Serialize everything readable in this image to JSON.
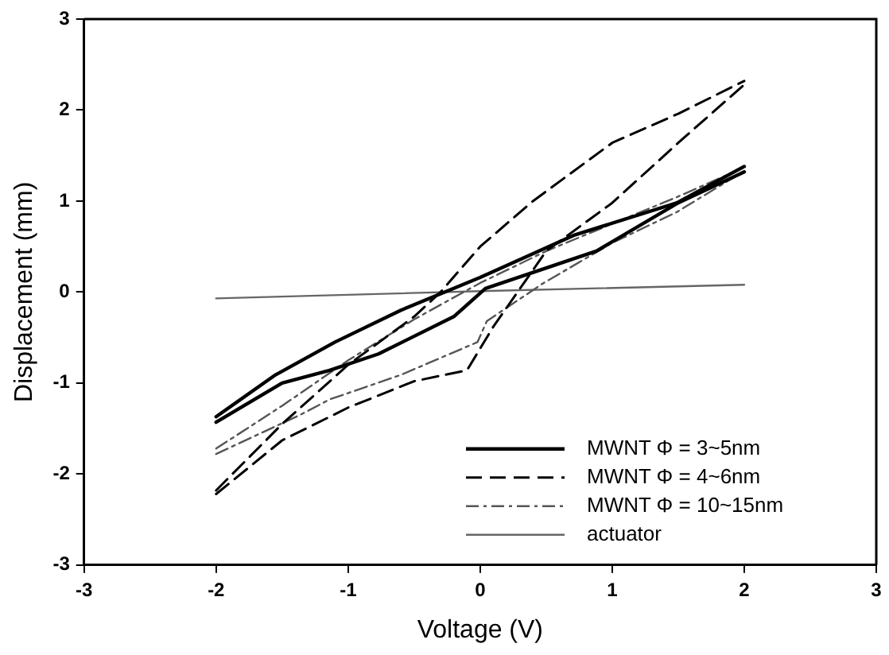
{
  "chart_data": {
    "type": "line",
    "xlabel": "Voltage (V)",
    "ylabel": "Displacement (mm)",
    "xlim": [
      -3,
      3
    ],
    "xticks": [
      -3,
      -2,
      -1,
      0,
      1,
      2,
      3
    ],
    "ylim": [
      -3,
      3
    ],
    "yticks": [
      -3,
      -2,
      -1,
      0,
      1,
      2,
      3
    ],
    "grid": false,
    "legend": "bottom right",
    "marker": "none",
    "series": [
      {
        "name": "MWNT Φ = 3~5nm",
        "color": "#000000",
        "line_style": "solid",
        "x": [
          -2,
          -1.5,
          -1.14,
          -0.77,
          -0.2,
          0.04,
          0.88,
          1.5,
          2
        ],
        "values": [
          -1.43,
          -1.0,
          -0.86,
          -0.68,
          -0.27,
          0.04,
          0.45,
          0.98,
          1.32
        ]
      },
      {
        "color": "#000000",
        "line_style": "solid",
        "x": [
          -2,
          -1.55,
          -1.1,
          -0.6,
          0,
          0.72,
          1.49,
          2
        ],
        "values": [
          -1.37,
          -0.91,
          -0.55,
          -0.2,
          0.16,
          0.63,
          0.98,
          1.38
        ]
      },
      {
        "name": "MWNT Φ = 4~6nm",
        "color": "#000000",
        "line_style": "dashed",
        "x": [
          -2,
          -1.5,
          -1,
          -0.5,
          -0.1,
          0.1,
          0.5,
          1,
          1.5,
          2
        ],
        "values": [
          -2.22,
          -1.63,
          -1.27,
          -0.98,
          -0.86,
          -0.38,
          0.45,
          0.98,
          1.64,
          2.28
        ]
      },
      {
        "color": "#000000",
        "line_style": "dashed",
        "x": [
          -2,
          -1.5,
          -1,
          -0.5,
          -0.3,
          0,
          0.4,
          1,
          1.5,
          2
        ],
        "values": [
          -2.18,
          -1.45,
          -0.8,
          -0.27,
          0,
          0.5,
          1.0,
          1.64,
          1.96,
          2.32
        ]
      },
      {
        "name": "MWNT Φ = 10~15nm",
        "color": "#555555",
        "line_style": "dotted",
        "x": [
          -2,
          -1.35,
          -1.14,
          -0.6,
          -0.02,
          0.05,
          0.47,
          1,
          1.49,
          2
        ],
        "values": [
          -1.78,
          -1.34,
          -1.18,
          -0.91,
          -0.55,
          -0.32,
          0.09,
          0.54,
          0.88,
          1.33
        ]
      },
      {
        "color": "#555555",
        "line_style": "dotted",
        "x": [
          -2,
          -1.5,
          -1,
          -0.5,
          0,
          0.5,
          1,
          1.5,
          2
        ],
        "values": [
          -1.72,
          -1.25,
          -0.75,
          -0.3,
          0.1,
          0.45,
          0.75,
          1.05,
          1.37
        ]
      },
      {
        "name": "actuator",
        "color": "#666666",
        "line_style": "solid",
        "x": [
          -2,
          0,
          2
        ],
        "values": [
          -0.07,
          0.01,
          0.08
        ]
      }
    ]
  }
}
